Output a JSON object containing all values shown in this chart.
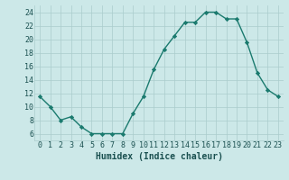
{
  "x": [
    0,
    1,
    2,
    3,
    4,
    5,
    6,
    7,
    8,
    9,
    10,
    11,
    12,
    13,
    14,
    15,
    16,
    17,
    18,
    19,
    20,
    21,
    22,
    23
  ],
  "y": [
    11.5,
    10,
    8,
    8.5,
    7,
    6,
    6,
    6,
    6,
    9,
    11.5,
    15.5,
    18.5,
    20.5,
    22.5,
    22.5,
    24,
    24,
    23,
    23,
    19.5,
    15,
    12.5,
    11.5
  ],
  "line_color": "#1a7a6e",
  "marker": "D",
  "marker_size": 2.2,
  "bg_color": "#cce8e8",
  "grid_color": "#aacccc",
  "xlabel": "Humidex (Indice chaleur)",
  "xlim": [
    -0.5,
    23.5
  ],
  "ylim": [
    5,
    25
  ],
  "yticks": [
    6,
    8,
    10,
    12,
    14,
    16,
    18,
    20,
    22,
    24
  ],
  "xticks": [
    0,
    1,
    2,
    3,
    4,
    5,
    6,
    7,
    8,
    9,
    10,
    11,
    12,
    13,
    14,
    15,
    16,
    17,
    18,
    19,
    20,
    21,
    22,
    23
  ],
  "xtick_labels": [
    "0",
    "1",
    "2",
    "3",
    "4",
    "5",
    "6",
    "7",
    "8",
    "9",
    "10",
    "11",
    "12",
    "13",
    "14",
    "15",
    "16",
    "17",
    "18",
    "19",
    "20",
    "21",
    "22",
    "23"
  ],
  "xlabel_fontsize": 7,
  "tick_fontsize": 6,
  "line_width": 1.0
}
